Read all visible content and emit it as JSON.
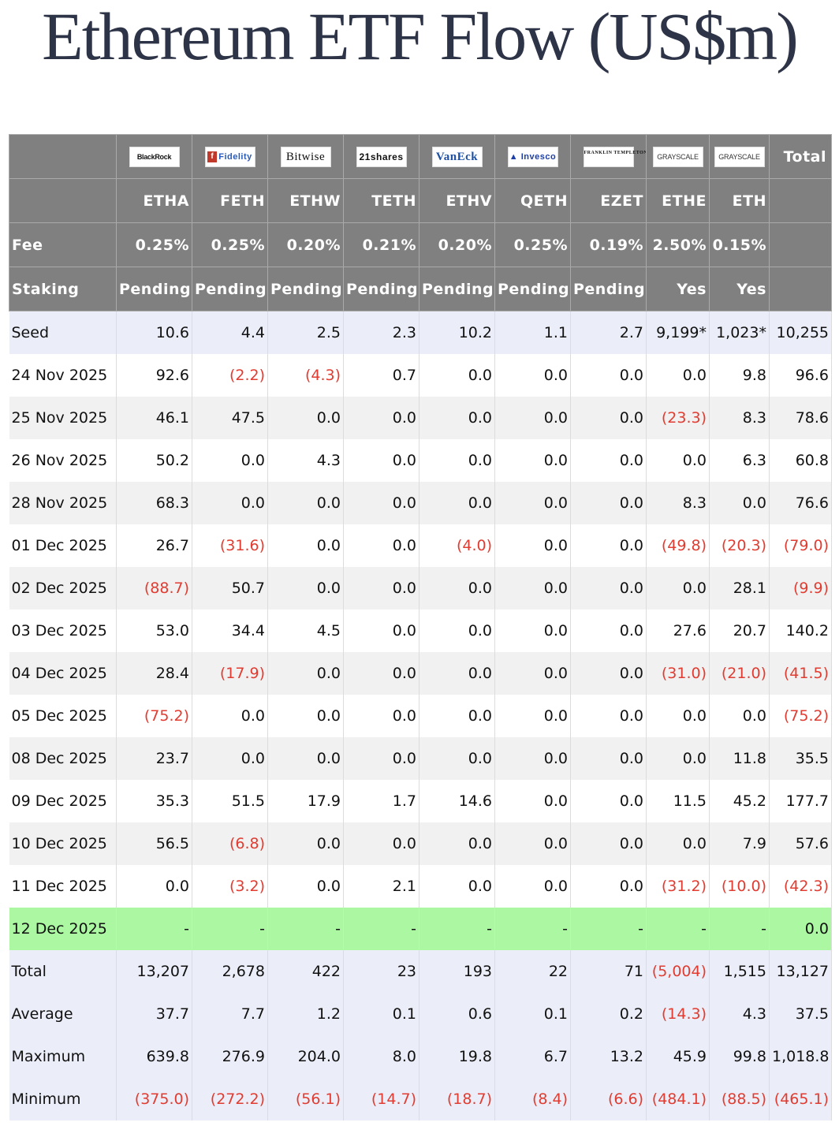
{
  "title": "Ethereum ETF Flow (US$m)",
  "issuers": [
    "BlackRock",
    "Fidelity",
    "Bitwise",
    "21shares",
    "VanEck",
    "Invesco",
    "FRANKLIN TEMPLETON",
    "GRAYSCALE",
    "GRAYSCALE"
  ],
  "header": {
    "total_label": "Total",
    "tickers": [
      "ETHA",
      "FETH",
      "ETHW",
      "TETH",
      "ETHV",
      "QETH",
      "EZET",
      "ETHE",
      "ETH"
    ],
    "fee_label": "Fee",
    "fees": [
      "0.25%",
      "0.25%",
      "0.20%",
      "0.21%",
      "0.20%",
      "0.25%",
      "0.19%",
      "2.50%",
      "0.15%"
    ],
    "staking_label": "Staking",
    "staking": [
      "Pending",
      "Pending",
      "Pending",
      "Pending",
      "Pending",
      "Pending",
      "Pending",
      "Yes",
      "Yes"
    ]
  },
  "rows": [
    {
      "label": "Seed",
      "style": "blue",
      "values": [
        "10.6",
        "4.4",
        "2.5",
        "2.3",
        "10.2",
        "1.1",
        "2.7",
        "9,199*",
        "1,023*",
        "10,255"
      ]
    },
    {
      "label": "24 Nov 2025",
      "style": "plain",
      "values": [
        "92.6",
        "(2.2)",
        "(4.3)",
        "0.7",
        "0.0",
        "0.0",
        "0.0",
        "0.0",
        "9.8",
        "96.6"
      ]
    },
    {
      "label": "25 Nov 2025",
      "style": "shade",
      "values": [
        "46.1",
        "47.5",
        "0.0",
        "0.0",
        "0.0",
        "0.0",
        "0.0",
        "(23.3)",
        "8.3",
        "78.6"
      ]
    },
    {
      "label": "26 Nov 2025",
      "style": "plain",
      "values": [
        "50.2",
        "0.0",
        "4.3",
        "0.0",
        "0.0",
        "0.0",
        "0.0",
        "0.0",
        "6.3",
        "60.8"
      ]
    },
    {
      "label": "28 Nov 2025",
      "style": "shade",
      "values": [
        "68.3",
        "0.0",
        "0.0",
        "0.0",
        "0.0",
        "0.0",
        "0.0",
        "8.3",
        "0.0",
        "76.6"
      ]
    },
    {
      "label": "01 Dec 2025",
      "style": "plain",
      "values": [
        "26.7",
        "(31.6)",
        "0.0",
        "0.0",
        "(4.0)",
        "0.0",
        "0.0",
        "(49.8)",
        "(20.3)",
        "(79.0)"
      ]
    },
    {
      "label": "02 Dec 2025",
      "style": "shade",
      "values": [
        "(88.7)",
        "50.7",
        "0.0",
        "0.0",
        "0.0",
        "0.0",
        "0.0",
        "0.0",
        "28.1",
        "(9.9)"
      ]
    },
    {
      "label": "03 Dec 2025",
      "style": "plain",
      "values": [
        "53.0",
        "34.4",
        "4.5",
        "0.0",
        "0.0",
        "0.0",
        "0.0",
        "27.6",
        "20.7",
        "140.2"
      ]
    },
    {
      "label": "04 Dec 2025",
      "style": "shade",
      "values": [
        "28.4",
        "(17.9)",
        "0.0",
        "0.0",
        "0.0",
        "0.0",
        "0.0",
        "(31.0)",
        "(21.0)",
        "(41.5)"
      ]
    },
    {
      "label": "05 Dec 2025",
      "style": "plain",
      "values": [
        "(75.2)",
        "0.0",
        "0.0",
        "0.0",
        "0.0",
        "0.0",
        "0.0",
        "0.0",
        "0.0",
        "(75.2)"
      ]
    },
    {
      "label": "08 Dec 2025",
      "style": "shade",
      "values": [
        "23.7",
        "0.0",
        "0.0",
        "0.0",
        "0.0",
        "0.0",
        "0.0",
        "0.0",
        "11.8",
        "35.5"
      ]
    },
    {
      "label": "09 Dec 2025",
      "style": "plain",
      "values": [
        "35.3",
        "51.5",
        "17.9",
        "1.7",
        "14.6",
        "0.0",
        "0.0",
        "11.5",
        "45.2",
        "177.7"
      ]
    },
    {
      "label": "10 Dec 2025",
      "style": "shade",
      "values": [
        "56.5",
        "(6.8)",
        "0.0",
        "0.0",
        "0.0",
        "0.0",
        "0.0",
        "0.0",
        "7.9",
        "57.6"
      ]
    },
    {
      "label": "11 Dec 2025",
      "style": "plain",
      "values": [
        "0.0",
        "(3.2)",
        "0.0",
        "2.1",
        "0.0",
        "0.0",
        "0.0",
        "(31.2)",
        "(10.0)",
        "(42.3)"
      ]
    },
    {
      "label": "12 Dec 2025",
      "style": "green",
      "values": [
        "-",
        "-",
        "-",
        "-",
        "-",
        "-",
        "-",
        "-",
        "-",
        "0.0"
      ]
    },
    {
      "label": "Total",
      "style": "blue",
      "values": [
        "13,207",
        "2,678",
        "422",
        "23",
        "193",
        "22",
        "71",
        "(5,004)",
        "1,515",
        "13,127"
      ]
    },
    {
      "label": "Average",
      "style": "blue",
      "values": [
        "37.7",
        "7.7",
        "1.2",
        "0.1",
        "0.6",
        "0.1",
        "0.2",
        "(14.3)",
        "4.3",
        "37.5"
      ]
    },
    {
      "label": "Maximum",
      "style": "blue",
      "values": [
        "639.8",
        "276.9",
        "204.0",
        "8.0",
        "19.8",
        "6.7",
        "13.2",
        "45.9",
        "99.8",
        "1,018.8"
      ]
    },
    {
      "label": "Minimum",
      "style": "blue",
      "values": [
        "(375.0)",
        "(272.2)",
        "(56.1)",
        "(14.7)",
        "(18.7)",
        "(8.4)",
        "(6.6)",
        "(484.1)",
        "(88.5)",
        "(465.1)"
      ]
    }
  ],
  "colors": {
    "header_bg": "#808080",
    "negative": "#e03c31",
    "highlight_row": "#abf7a2",
    "summary_row": "#ebeef8",
    "title": "#2e3447"
  }
}
